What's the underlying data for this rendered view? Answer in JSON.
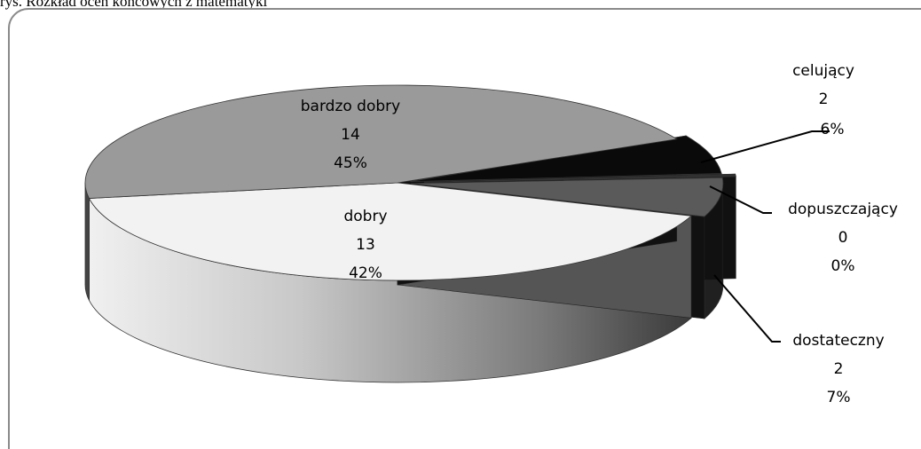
{
  "caption": "rys. Rozkład ocen końcowych z matematyki",
  "chart_data": {
    "type": "pie",
    "style": "3d-exploded",
    "title": "",
    "slices": [
      {
        "label": "celujący",
        "value": 2,
        "percent": "6%",
        "color": "#0a0a0a"
      },
      {
        "label": "dopuszczający",
        "value": 0,
        "percent": "0%",
        "color": "#303030"
      },
      {
        "label": "dostateczny",
        "value": 2,
        "percent": "7%",
        "color": "#5a5a5a"
      },
      {
        "label": "dobry",
        "value": 13,
        "percent": "42%",
        "color": "#f2f2f2"
      },
      {
        "label": "bardzo dobry",
        "value": 14,
        "percent": "45%",
        "color": "#9a9a9a"
      }
    ]
  }
}
